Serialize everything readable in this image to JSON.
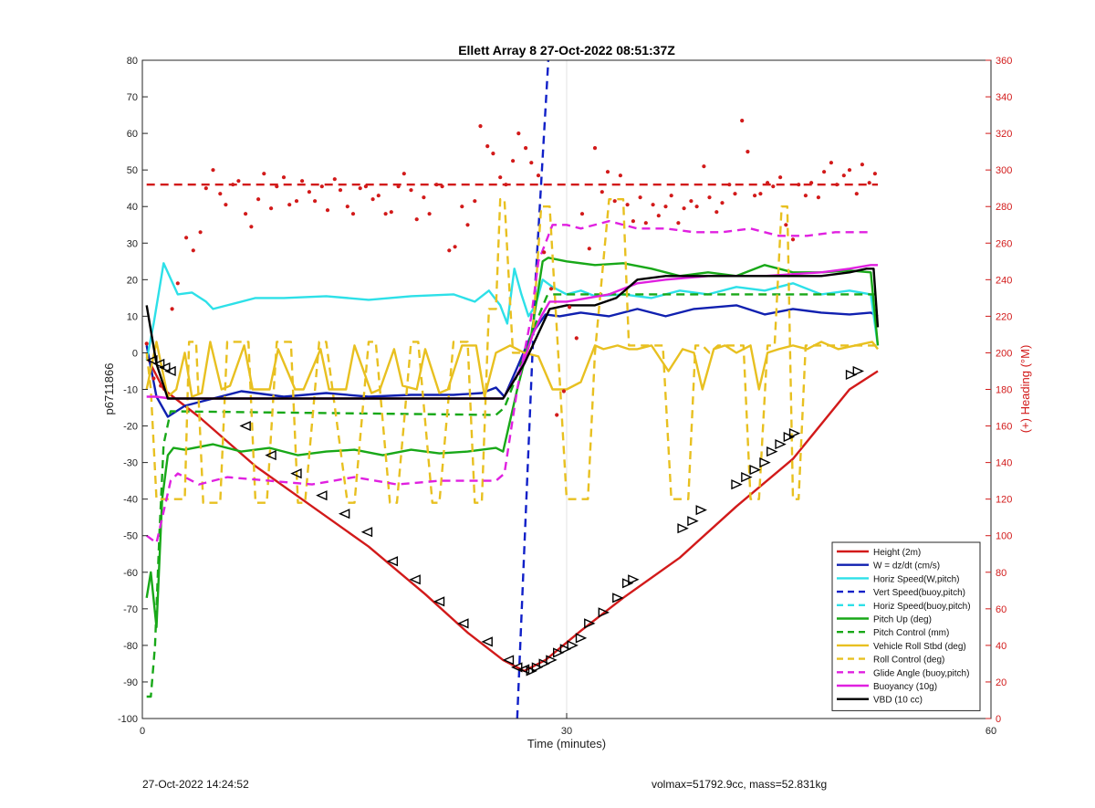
{
  "chart_data": {
    "type": "line",
    "title": "Ellett Array 8 27-Oct-2022 08:51:37Z",
    "xlabel": "Time (minutes)",
    "ylabel": "p6711866",
    "y2label": "(+) Heading (°M)",
    "xlim": [
      0,
      60
    ],
    "ylim": [
      -100,
      80
    ],
    "y2lim": [
      0,
      360
    ],
    "xticks": [
      "0",
      "30",
      "60"
    ],
    "yticks": [
      "-100",
      "-90",
      "-80",
      "-70",
      "-60",
      "-50",
      "-40",
      "-30",
      "-20",
      "-10",
      "0",
      "10",
      "20",
      "30",
      "40",
      "50",
      "60",
      "70",
      "80"
    ],
    "y2ticks": [
      "0",
      "20",
      "40",
      "60",
      "80",
      "100",
      "120",
      "140",
      "160",
      "180",
      "200",
      "220",
      "240",
      "260",
      "280",
      "300",
      "320",
      "340",
      "360"
    ],
    "grid": "vertical lines at x ticks",
    "legend_position": "bottom-right",
    "colors": {
      "height": "#d21a1a",
      "w": "#1020b0",
      "horiz_speed": "#2de0e8",
      "vert_speed": "#1020c8",
      "horiz_speed_buoy": "#2de0e8",
      "pitch": "#18a818",
      "pitch_control": "#18a818",
      "roll": "#e8c020",
      "roll_control": "#e8c020",
      "glide": "#e020e0",
      "buoyancy": "#e020e0",
      "vbd": "#000000",
      "heading": "#d21a1a",
      "axis2": "#d21a1a"
    },
    "series": [
      {
        "name": "Height (2m)",
        "key": "height",
        "style": "solid",
        "axis": "left",
        "x": [
          0.3,
          1.5,
          4,
          8,
          12,
          16,
          20,
          23,
          25.5,
          27,
          28.5,
          31,
          34,
          38,
          42,
          46,
          50,
          52
        ],
        "y": [
          -1,
          -10,
          -17.5,
          -31,
          -42,
          -53,
          -66,
          -76.5,
          -84,
          -87,
          -84,
          -76,
          -67,
          -56,
          -42,
          -29,
          -10,
          -5
        ]
      },
      {
        "name": "W = dz/dt (cm/s)",
        "key": "w",
        "style": "solid",
        "axis": "left",
        "x": [
          0.3,
          1,
          1.8,
          3,
          5,
          7,
          10,
          13,
          16,
          19,
          22,
          24,
          25,
          25.6,
          26.5,
          27.5,
          28.5,
          29.5,
          31,
          33,
          35,
          37,
          39,
          42,
          44,
          46,
          48,
          50,
          51.5,
          52
        ],
        "y": [
          2,
          -12,
          -17.5,
          -14.5,
          -12.5,
          -10.5,
          -12,
          -11,
          -12,
          -11.5,
          -11.5,
          -11,
          -9.5,
          -12,
          -4,
          5,
          10.5,
          10,
          11,
          10,
          12,
          10,
          12,
          13,
          10.5,
          12,
          11,
          10.5,
          11,
          10
        ]
      },
      {
        "name": "Horiz Speed(W,pitch)",
        "key": "horiz_speed",
        "style": "solid",
        "axis": "left",
        "x": [
          0.3,
          0.8,
          1.5,
          2.5,
          3.5,
          4.5,
          5,
          6,
          8,
          10,
          13,
          16,
          19,
          22,
          23.5,
          24.5,
          25.3,
          25.8,
          26.3,
          26.8,
          27.3,
          27.8,
          28.3,
          29,
          30,
          31,
          32,
          34,
          36,
          38,
          40,
          42,
          44,
          46,
          48,
          50,
          51.5,
          52
        ],
        "y": [
          -2,
          8,
          24.5,
          16,
          16.5,
          14,
          12,
          13,
          15,
          15,
          15.5,
          14.5,
          15.5,
          16,
          14,
          17,
          13,
          8,
          23,
          16,
          10,
          13,
          20,
          18,
          16,
          17,
          15.5,
          16,
          15,
          17,
          16,
          18,
          17,
          19,
          16,
          17,
          16,
          2
        ]
      },
      {
        "name": "Vert Speed(buoy,pitch)",
        "key": "vert_speed",
        "style": "dashed",
        "axis": "left",
        "x": [
          26.5,
          27.8,
          28.7
        ],
        "y": [
          -100,
          20,
          80
        ]
      },
      {
        "name": "Horiz Speed(buoy,pitch)",
        "key": "horiz_speed_buoy",
        "style": "dashed",
        "axis": "left",
        "x": [],
        "y": []
      },
      {
        "name": "Pitch Up (deg)",
        "key": "pitch",
        "style": "solid",
        "axis": "left",
        "x": [
          0.3,
          0.6,
          1,
          1.4,
          1.8,
          2.2,
          3,
          5,
          7,
          9,
          11,
          13,
          15,
          17,
          19,
          21,
          23,
          25,
          25.5,
          26.5,
          27.5,
          28.3,
          28.7,
          30,
          32,
          34,
          36,
          38,
          40,
          42,
          44,
          46,
          48,
          50,
          51.5,
          52
        ],
        "y": [
          -67,
          -60,
          -75,
          -40,
          -28,
          -26,
          -26.5,
          -25,
          -27,
          -26,
          -28,
          -27,
          -26.5,
          -28,
          -26.5,
          -27.5,
          -27,
          -26,
          -27,
          -10,
          5,
          25,
          26,
          25,
          24,
          24.5,
          23,
          21,
          22,
          21,
          24,
          22,
          22,
          22.5,
          22,
          2
        ]
      },
      {
        "name": "Pitch Control (mm)",
        "key": "pitch_control",
        "style": "dashed",
        "axis": "left",
        "x": [
          0.3,
          0.6,
          0.9,
          1.2,
          1.5,
          2,
          25,
          25.6,
          26.5,
          27.8,
          28.6,
          29,
          52
        ],
        "y": [
          -94,
          -94,
          -80,
          -50,
          -25,
          -16,
          -17,
          -15,
          -6,
          8,
          15.5,
          16,
          16
        ]
      },
      {
        "name": "Vehicle Roll Stbd (deg)",
        "key": "roll",
        "style": "solid",
        "axis": "left",
        "x": [
          0.3,
          1,
          1.8,
          2.4,
          3,
          3.5,
          4.2,
          4.8,
          5.6,
          6.2,
          7.2,
          7.8,
          9,
          9.6,
          10.8,
          11.4,
          12.6,
          13.2,
          14.4,
          15,
          16.2,
          16.8,
          17.8,
          18.4,
          19.4,
          20,
          21,
          21.6,
          22.6,
          23.6,
          24.2,
          25,
          26,
          27,
          28,
          29,
          30,
          31,
          32,
          32.6,
          33.6,
          34.4,
          35,
          36,
          37.2,
          38.2,
          39,
          39.6,
          40.4,
          41.2,
          42,
          43,
          43.6,
          44.2,
          45,
          46,
          47,
          48,
          49.2,
          50.4,
          51.6,
          52
        ],
        "y": [
          -10,
          3,
          -12,
          -10,
          0,
          -12,
          -11,
          3,
          -10,
          -9,
          2,
          -10,
          -10,
          1,
          -10,
          -10,
          1,
          -10,
          -10,
          2,
          -11,
          -10,
          1,
          -9,
          -10,
          1,
          -11,
          -10,
          2,
          2,
          -12,
          0,
          2,
          0,
          -1,
          -10,
          -10,
          -8,
          2,
          1,
          2,
          1,
          1,
          2,
          -5,
          1,
          0,
          -10,
          1,
          2,
          0,
          2,
          -10,
          0,
          1,
          2,
          1,
          3,
          1,
          2,
          3,
          1
        ]
      },
      {
        "name": "Roll Control (deg)",
        "key": "roll_control",
        "style": "dashed",
        "axis": "left",
        "x": [
          0.3,
          0.6,
          1,
          1.4,
          1.7,
          2,
          3,
          3.3,
          3.8,
          4.3,
          5.5,
          6,
          6.5,
          7.5,
          8,
          8.8,
          9.5,
          10.5,
          11,
          11.5,
          12.5,
          13,
          14.5,
          15,
          16,
          16.5,
          17.5,
          18,
          19,
          19.5,
          20.5,
          21,
          22,
          23,
          23.5,
          24,
          24.5,
          25,
          25.3,
          25.6,
          26.2,
          26.8,
          27.2,
          27.6,
          28.2,
          28.8,
          29.4,
          30,
          31,
          31.5,
          32,
          33,
          33.5,
          34,
          34.4,
          34.8,
          35.5,
          35.9,
          36.4,
          36.8,
          37.4,
          38,
          38.6,
          39.1,
          39.6,
          40.1,
          40.7,
          41.3,
          41.9,
          42.5,
          43,
          43.6,
          44.2,
          44.7,
          45.2,
          45.6,
          46,
          46.4,
          46.9,
          47.4,
          48,
          50,
          52
        ],
        "y": [
          0,
          -10,
          -40,
          -40,
          -40,
          -40,
          -40,
          3,
          3,
          -41,
          -41,
          3,
          3,
          3,
          -41,
          -41,
          3,
          3,
          -41,
          -41,
          3,
          3,
          -41,
          -41,
          3,
          3,
          -41,
          -41,
          3,
          3,
          -41,
          -41,
          3,
          3,
          -41,
          -41,
          12,
          12,
          42,
          42,
          0,
          0,
          0,
          5,
          40,
          40,
          0,
          -40,
          -40,
          -40,
          0,
          42,
          42,
          42,
          2,
          2,
          2,
          2,
          2,
          2,
          -40,
          -40,
          -40,
          2,
          2,
          0,
          2,
          2,
          2,
          2,
          -40,
          -40,
          2,
          2,
          40,
          40,
          -40,
          -40,
          2,
          2,
          2,
          2,
          2
        ]
      },
      {
        "name": "Glide Angle (buoy,pitch)",
        "key": "glide",
        "style": "dashed",
        "axis": "left",
        "x": [
          0.3,
          1,
          2,
          2.5,
          4,
          6,
          9,
          12,
          15,
          18,
          21,
          23,
          25,
          25.6,
          26.5,
          27.5,
          28,
          28.5,
          29,
          30,
          31,
          33,
          35,
          37,
          39,
          41,
          43,
          45,
          47,
          49,
          51.5
        ],
        "y": [
          -50,
          -52,
          -35,
          -33,
          -36,
          -34,
          -35,
          -36,
          -34,
          -36,
          -35,
          -35,
          -35,
          -33,
          -10,
          10,
          25,
          30,
          35,
          35,
          34,
          36,
          34,
          34,
          33,
          33,
          34,
          32,
          32,
          33,
          33
        ]
      },
      {
        "name": "Buoyancy (10g)",
        "key": "buoyancy",
        "style": "solid",
        "axis": "left",
        "x": [
          0.3,
          1,
          2,
          5,
          10,
          15,
          20,
          24,
          25.5,
          26.5,
          27,
          27.6,
          28.2,
          28.8,
          30,
          33,
          35,
          37,
          40,
          44,
          48,
          50,
          51.5,
          52
        ],
        "y": [
          -12,
          -12,
          -12.5,
          -12.5,
          -12.5,
          -12.5,
          -12.5,
          -12.5,
          -12.5,
          -6,
          -2,
          5,
          10,
          14,
          14,
          16,
          19,
          20,
          21,
          21,
          22,
          23,
          24,
          24
        ]
      },
      {
        "name": "VBD (10 cc)",
        "key": "vbd",
        "style": "solid",
        "axis": "left",
        "x": [
          0.3,
          1,
          1.8,
          3,
          10,
          20,
          25.5,
          27,
          28.8,
          30,
          32,
          33.5,
          35,
          37,
          40,
          44,
          48,
          50,
          51.2,
          51.7,
          52
        ],
        "y": [
          13,
          -3,
          -12.5,
          -12.5,
          -12.5,
          -12.5,
          -12.5,
          -3,
          12,
          13,
          13,
          15,
          20,
          21,
          21,
          21,
          21,
          22,
          23,
          23,
          7
        ]
      },
      {
        "name": "Heading dashed reference",
        "key": "heading_ref",
        "style": "dashed",
        "axis": "right",
        "x": [
          0.3,
          52
        ],
        "y": [
          292,
          292
        ]
      }
    ],
    "heading_points": {
      "x": [
        0.3,
        0.8,
        1.3,
        2.1,
        2.5,
        3.1,
        3.6,
        4.1,
        4.5,
        5.0,
        5.5,
        5.9,
        6.4,
        6.8,
        7.3,
        7.7,
        8.2,
        8.6,
        9.1,
        9.5,
        10.0,
        10.4,
        10.9,
        11.3,
        11.8,
        12.2,
        12.7,
        13.1,
        13.6,
        14.0,
        14.5,
        14.9,
        15.4,
        15.8,
        16.3,
        16.7,
        17.2,
        17.6,
        18.1,
        18.5,
        19.0,
        19.4,
        19.9,
        20.3,
        20.8,
        21.2,
        21.7,
        22.1,
        22.6,
        23.0,
        23.5,
        23.9,
        24.4,
        24.8,
        25.3,
        25.7,
        26.2,
        26.6,
        27.1,
        27.5,
        28.0,
        28.4,
        28.9,
        29.3,
        29.8,
        30.2,
        30.7,
        31.1,
        31.6,
        32.0,
        32.5,
        32.9,
        33.4,
        33.8,
        34.3,
        34.7,
        35.2,
        35.6,
        36.1,
        36.5,
        37.0,
        37.4,
        37.9,
        38.3,
        38.8,
        39.2,
        39.7,
        40.1,
        40.6,
        41.0,
        41.5,
        41.9,
        42.4,
        42.8,
        43.3,
        43.7,
        44.2,
        44.6,
        45.1,
        45.5,
        46.0,
        46.4,
        46.9,
        47.3,
        47.8,
        48.2,
        48.7,
        49.1,
        49.6,
        50.0,
        50.5,
        50.9,
        51.4,
        51.8
      ],
      "y": [
        205,
        186,
        182,
        224,
        238,
        263,
        256,
        266,
        290,
        300,
        287,
        281,
        292,
        294,
        276,
        269,
        284,
        298,
        279,
        291,
        296,
        281,
        283,
        294,
        288,
        283,
        291,
        278,
        295,
        289,
        280,
        276,
        290,
        291,
        284,
        286,
        276,
        277,
        291,
        298,
        289,
        273,
        285,
        276,
        292,
        291,
        256,
        258,
        280,
        270,
        283,
        324,
        313,
        309,
        296,
        292,
        305,
        320,
        312,
        304,
        297,
        255,
        235,
        166,
        179,
        225,
        208,
        276,
        257,
        312,
        288,
        299,
        283,
        297,
        281,
        272,
        285,
        271,
        281,
        275,
        280,
        286,
        271,
        279,
        283,
        280,
        302,
        285,
        277,
        282,
        292,
        287,
        327,
        310,
        286,
        287,
        293,
        291,
        296,
        270,
        262,
        292,
        286,
        293,
        285,
        299,
        304,
        292,
        297,
        300,
        287,
        303,
        293,
        298
      ]
    },
    "height_markers": {
      "x": [
        0.7,
        1.2,
        1.6,
        2.0,
        7.3,
        9.1,
        10.9,
        12.7,
        14.3,
        15.9,
        17.7,
        19.3,
        21.0,
        22.7,
        24.4,
        25.9,
        26.5,
        27.0,
        27.5,
        27.9,
        28.4,
        28.9,
        29.4,
        29.9,
        30.4,
        31.0,
        31.6,
        32.6,
        33.6,
        34.3,
        34.7,
        38.2,
        38.9,
        39.5,
        42.0,
        42.7,
        43.3,
        44.0,
        44.5,
        45.1,
        45.7,
        46.1,
        50.1,
        50.6
      ],
      "y": [
        -2,
        -3,
        -4,
        -5,
        -20,
        -28,
        -33,
        -39,
        -44,
        -49,
        -57,
        -62,
        -68,
        -74,
        -79,
        -84,
        -86,
        -86.5,
        -87,
        -86,
        -85,
        -84,
        -82,
        -81,
        -80,
        -78,
        -74,
        -71,
        -67,
        -63,
        -62,
        -48,
        -46,
        -43,
        -36,
        -34,
        -32,
        -30,
        -27,
        -25,
        -23,
        -22,
        -6,
        -5
      ]
    }
  },
  "footer": {
    "left": "27-Oct-2022 14:24:52",
    "right": "volmax=51792.9cc, mass=52.831kg"
  }
}
